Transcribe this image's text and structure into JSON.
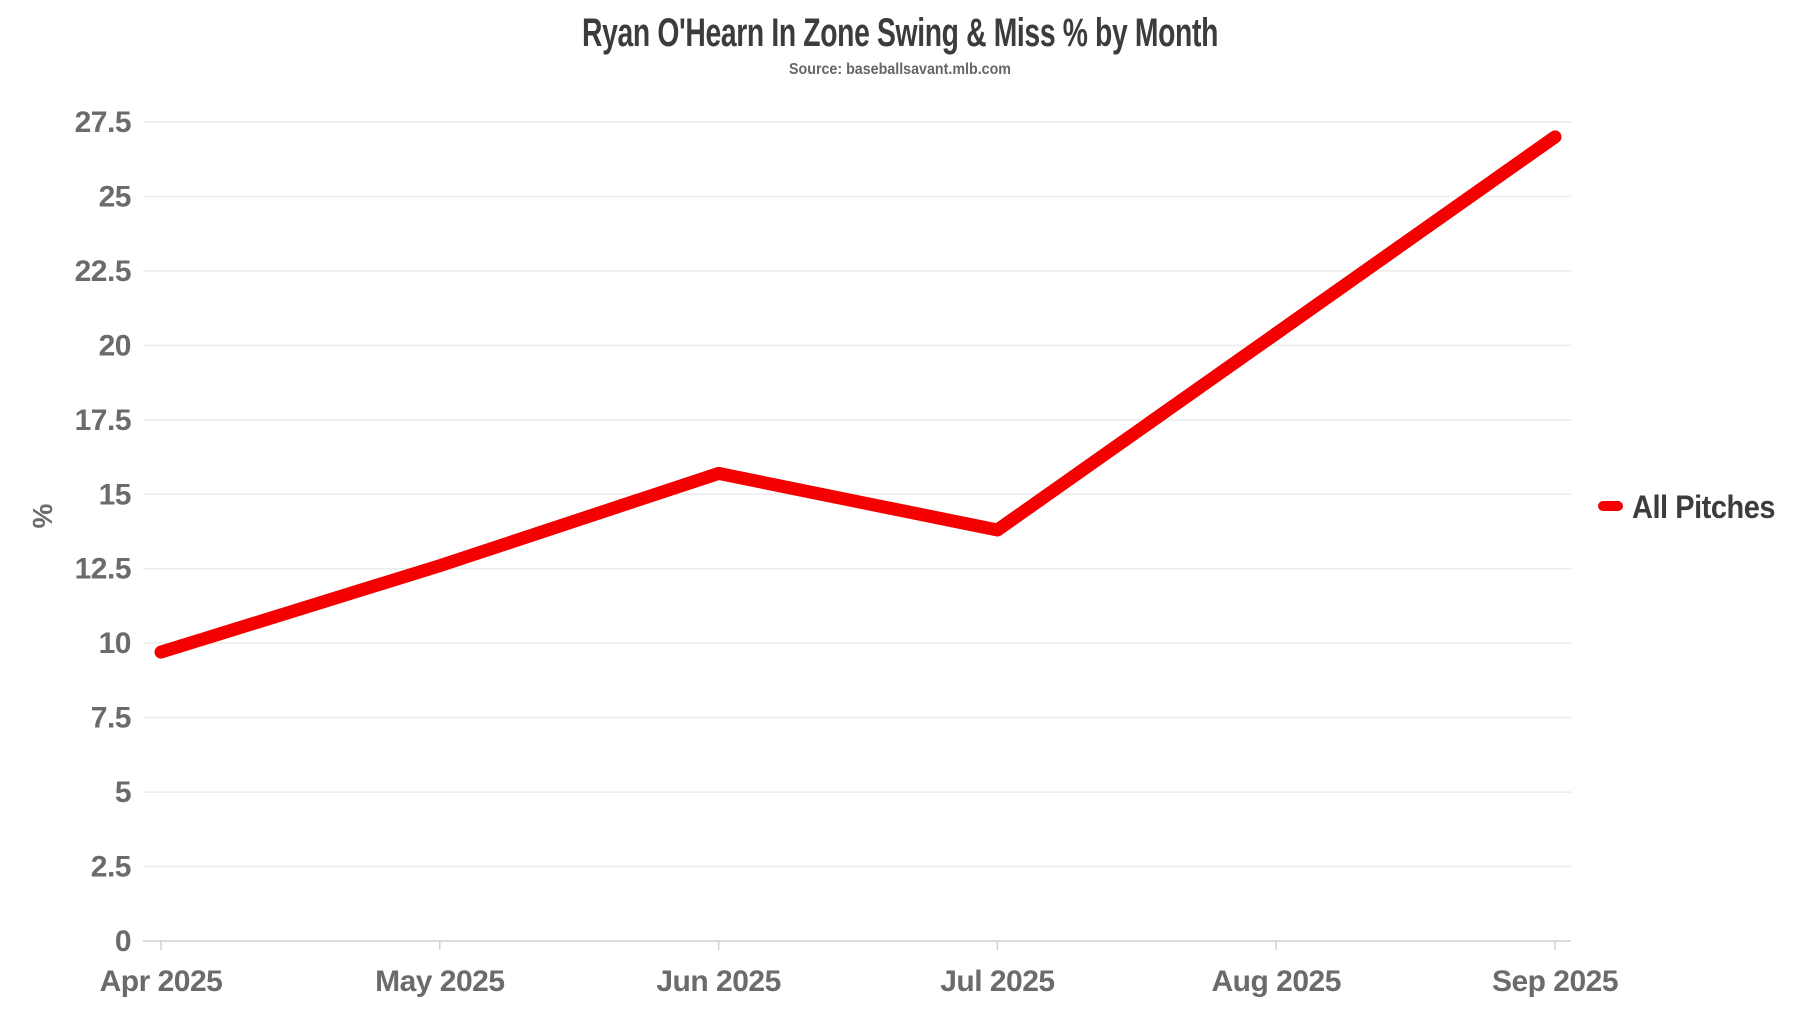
{
  "page": {
    "background": "#ffffff"
  },
  "chart_data": {
    "type": "line",
    "title": "Ryan O'Hearn In Zone Swing & Miss % by Month",
    "subtitle": "Source: baseballsavant.mlb.com",
    "categories": [
      "Apr 2025",
      "May 2025",
      "Jun 2025",
      "Jul 2025",
      "Aug 2025",
      "Sep 2025"
    ],
    "series": [
      {
        "name": "All Pitches",
        "color": "#f40000",
        "values": [
          9.7,
          12.6,
          15.7,
          13.8,
          20.4,
          27.0
        ]
      }
    ],
    "xlabel": "",
    "ylabel": "%",
    "ylim": [
      0,
      27.5
    ],
    "yticks": [
      "0",
      "2.5",
      "5",
      "7.5",
      "10",
      "12.5",
      "15",
      "17.5",
      "20",
      "22.5",
      "25",
      "27.5"
    ],
    "grid": "horizontal-only",
    "legend_position": "right-middle"
  },
  "colors": {
    "series_red": "#f40000",
    "title_text": "#3c3c3c",
    "subtitle_text": "#666666",
    "tick_text": "#6b6b6b",
    "gridline": "#ebebeb",
    "axis_line": "#d0d0d0"
  }
}
